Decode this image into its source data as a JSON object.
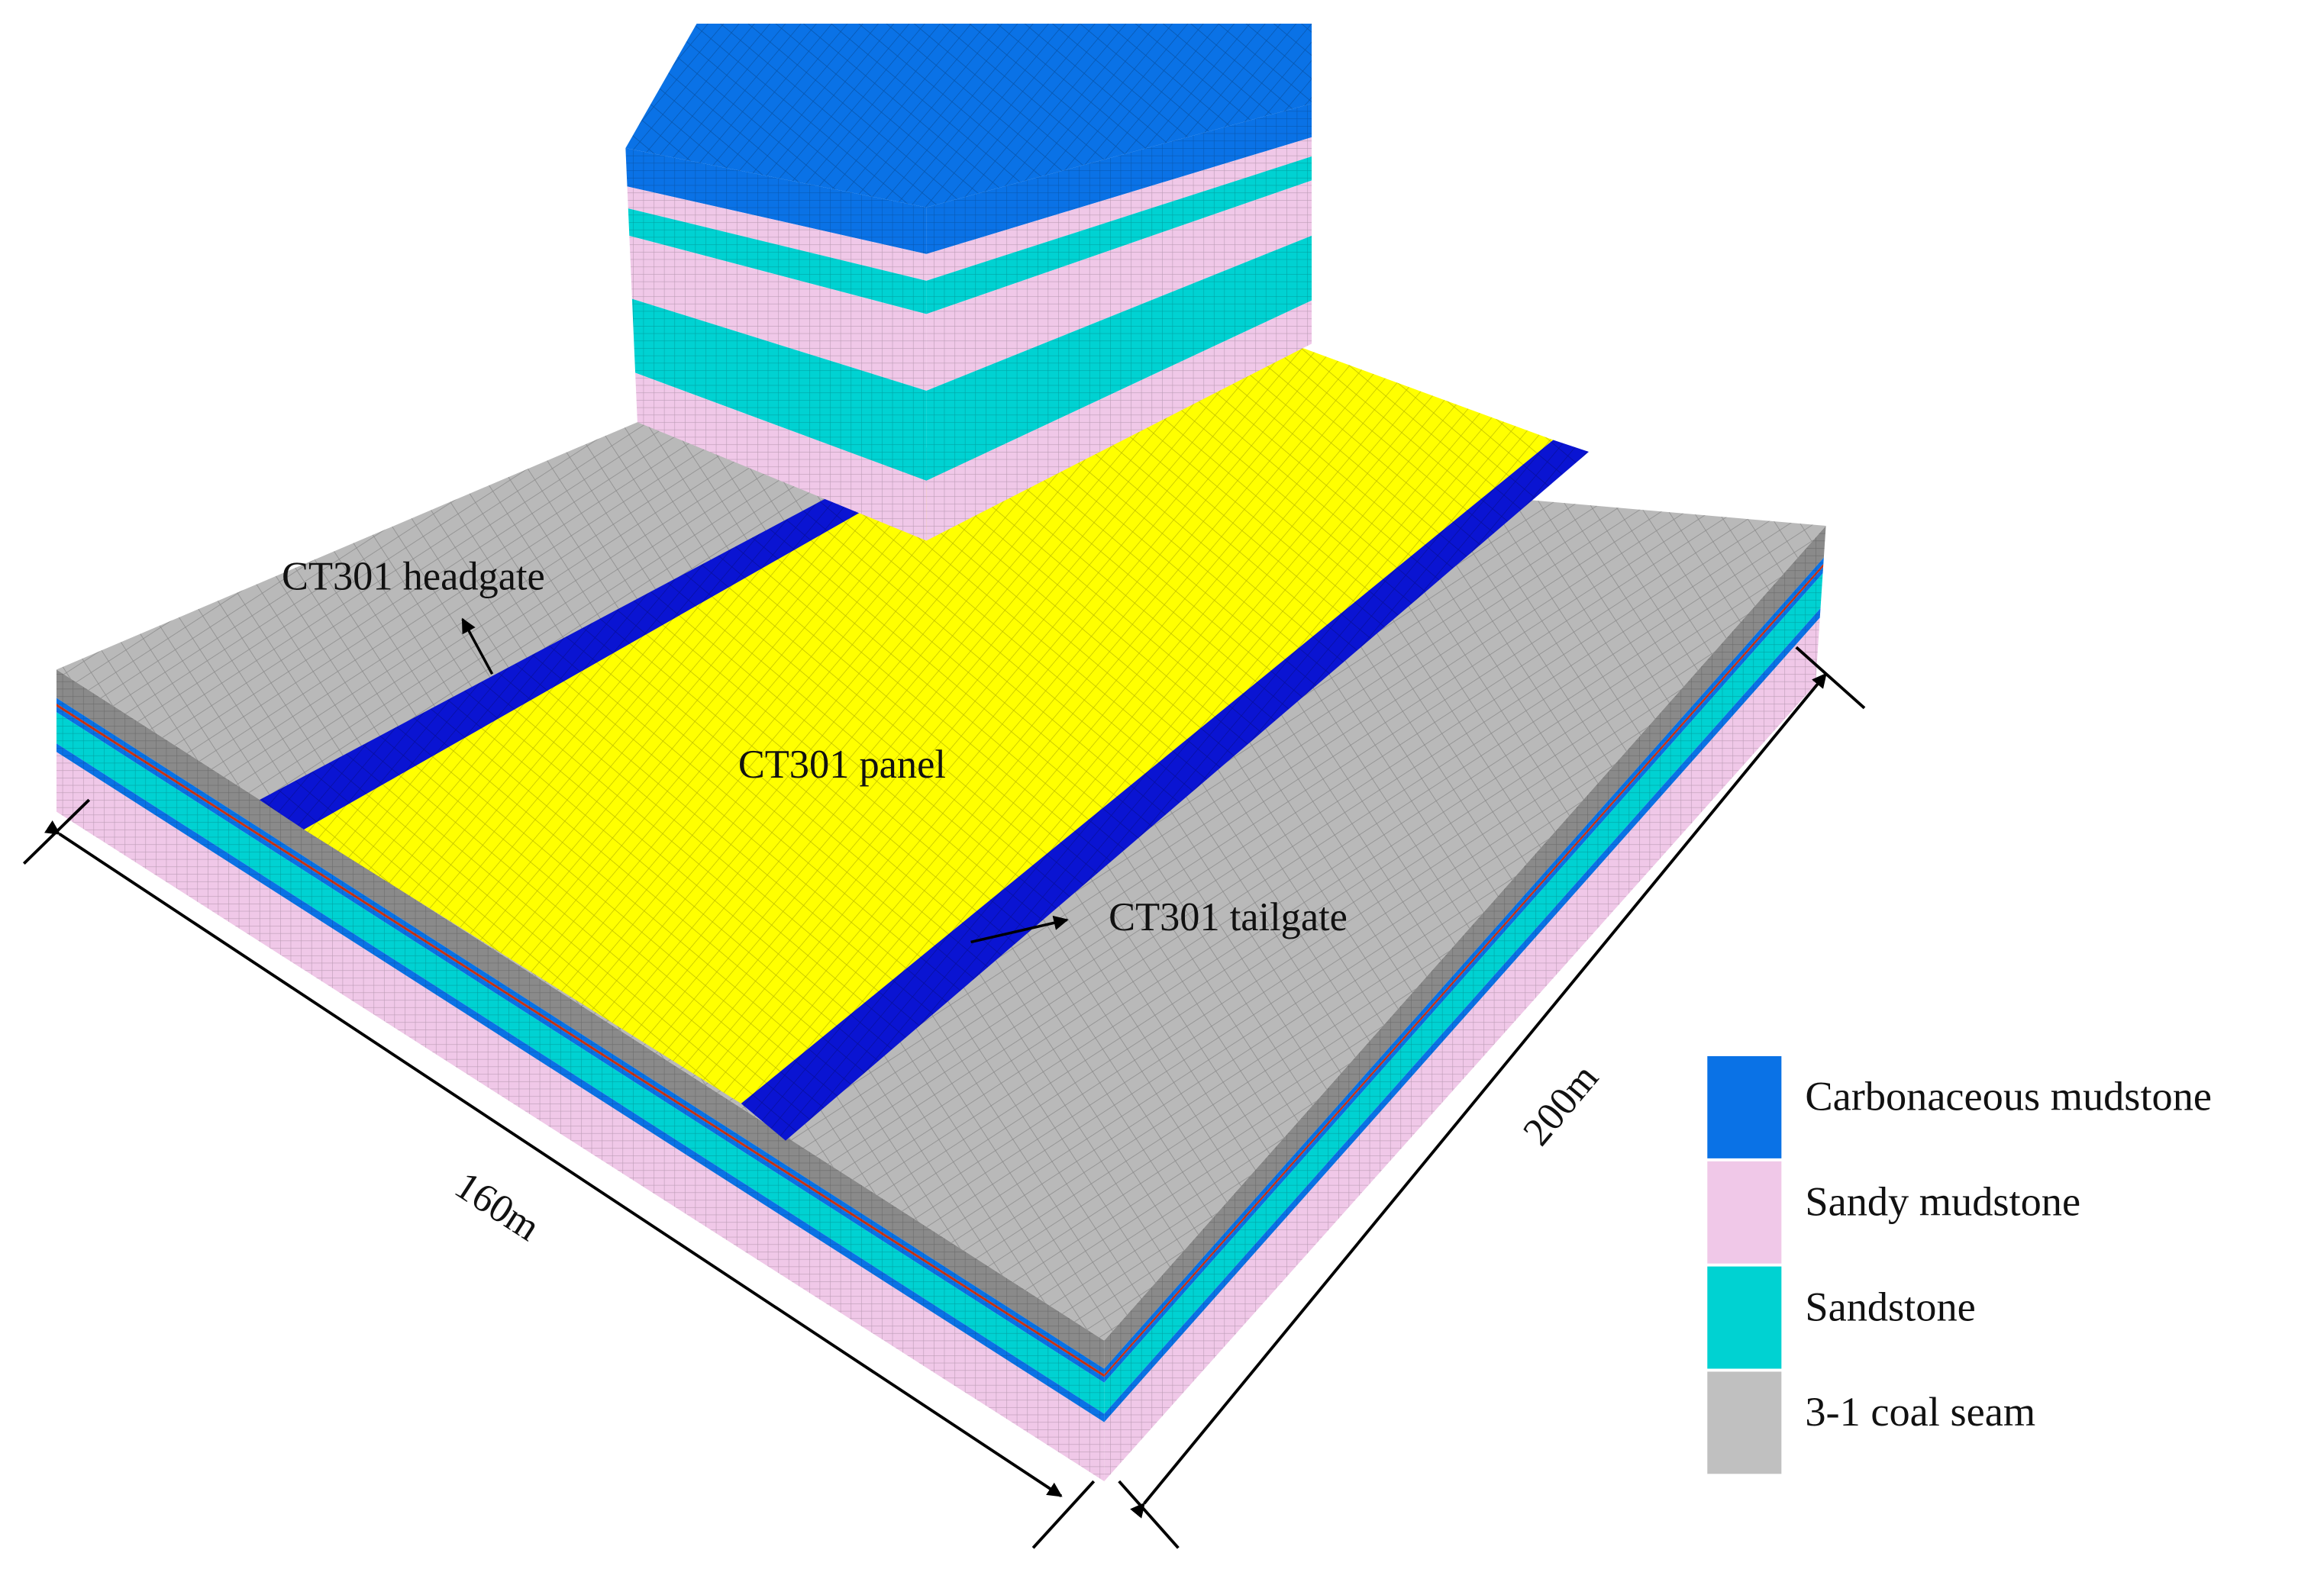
{
  "labels": {
    "headgate": "CT301 headgate",
    "panel": "CT301 panel",
    "tailgate": "CT301 tailgate"
  },
  "dimensions": {
    "width": "160m",
    "length": "200m"
  },
  "legend": [
    {
      "label": "Carbonaceous mudstone",
      "color": "#0a72e6"
    },
    {
      "label": "Sandy mudstone",
      "color": "#f0c8e8"
    },
    {
      "label": "Sandstone",
      "color": "#00d2d2"
    },
    {
      "label": "3-1 coal seam",
      "color": "#c0c0c0"
    }
  ]
}
